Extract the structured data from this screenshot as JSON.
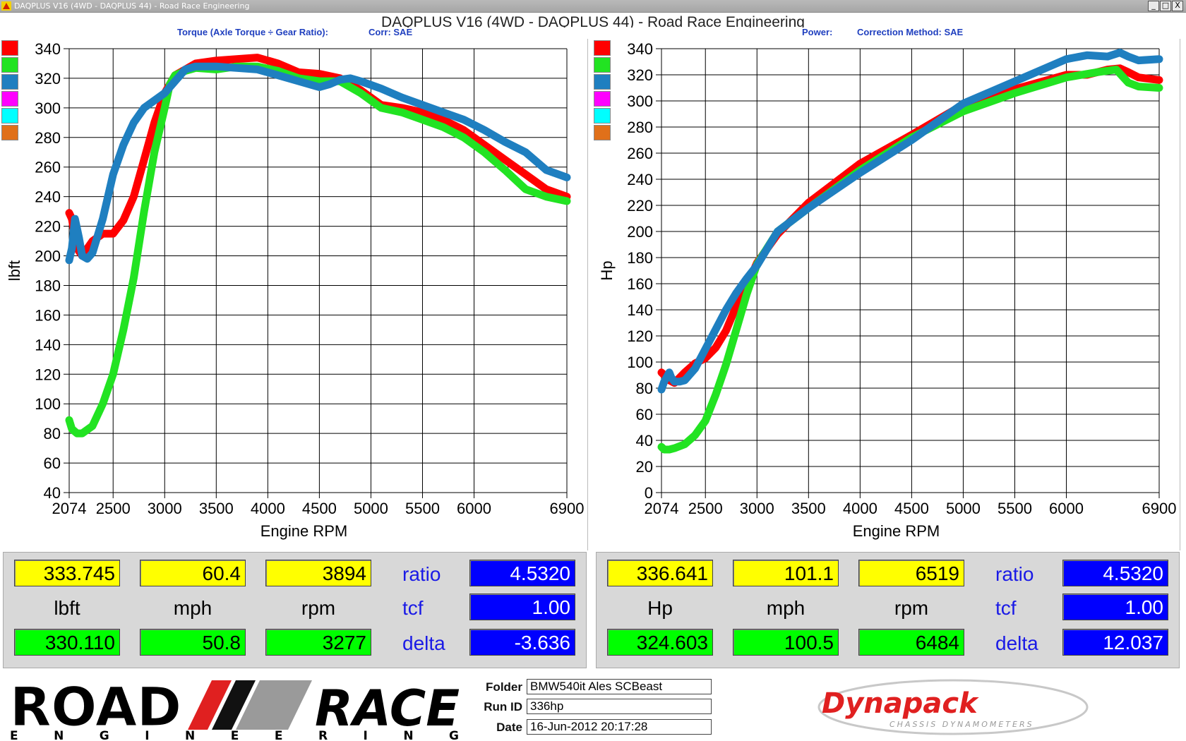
{
  "window": {
    "title": "DAQPLUS V16 (4WD - DAQPLUS 44) - Road Race Engineering",
    "buttons": [
      "_",
      "□",
      "X"
    ]
  },
  "header": {
    "title": "DAQPLUS V16 (4WD - DAQPLUS 44) - Road Race Engineering"
  },
  "colors": {
    "red": "#ff0000",
    "green": "#22e322",
    "blue": "#1f7fc0",
    "magenta": "#ff00ff",
    "cyan": "#00ffff",
    "orange": "#e0701a",
    "readout_yellow": "#ffff00",
    "readout_green": "#00ff00",
    "readout_blue": "#0000ff"
  },
  "chart_data": [
    {
      "type": "line",
      "subtitle_left": "Torque (Axle Torque ÷ Gear Ratio):",
      "subtitle_right": "Corr: SAE",
      "xlabel": "Engine RPM",
      "ylabel": "lbft",
      "xlim": [
        2074,
        6900
      ],
      "ylim": [
        40,
        340
      ],
      "xticks": [
        "2074",
        "2500",
        "3000",
        "3500",
        "4000",
        "4500",
        "5000",
        "5500",
        "6000",
        "6900"
      ],
      "xtick_values": [
        2074,
        2500,
        3000,
        3500,
        4000,
        4500,
        5000,
        5500,
        6000,
        6900
      ],
      "yticks": [
        340,
        320,
        300,
        280,
        260,
        240,
        220,
        200,
        180,
        160,
        140,
        120,
        100,
        80,
        60,
        40
      ],
      "grid": true,
      "legend": "left",
      "series": [
        {
          "color": "red",
          "x": [
            2074,
            2100,
            2150,
            2200,
            2300,
            2400,
            2500,
            2600,
            2700,
            2800,
            2900,
            3000,
            3100,
            3200,
            3300,
            3500,
            3700,
            3900,
            4100,
            4300,
            4500,
            4700,
            4900,
            5100,
            5300,
            5500,
            5700,
            5900,
            6100,
            6300,
            6500,
            6700,
            6900
          ],
          "y": [
            229,
            225,
            205,
            200,
            210,
            215,
            215,
            224,
            240,
            265,
            290,
            310,
            322,
            326,
            330,
            332,
            333,
            334,
            330,
            324,
            323,
            320,
            312,
            302,
            300,
            297,
            292,
            285,
            275,
            265,
            255,
            245,
            240
          ]
        },
        {
          "color": "green",
          "x": [
            2074,
            2100,
            2150,
            2200,
            2300,
            2400,
            2500,
            2600,
            2700,
            2800,
            2900,
            3000,
            3050,
            3100,
            3200,
            3300,
            3500,
            3700,
            3900,
            4100,
            4300,
            4500,
            4700,
            4900,
            5100,
            5300,
            5500,
            5700,
            5900,
            6100,
            6300,
            6500,
            6700,
            6900
          ],
          "y": [
            89,
            83,
            80,
            80,
            85,
            100,
            120,
            150,
            185,
            230,
            270,
            300,
            316,
            322,
            325,
            327,
            326,
            328,
            328,
            325,
            320,
            318,
            318,
            310,
            300,
            297,
            292,
            287,
            280,
            270,
            258,
            245,
            240,
            237
          ]
        },
        {
          "color": "blue",
          "x": [
            2074,
            2100,
            2130,
            2170,
            2200,
            2250,
            2300,
            2400,
            2500,
            2600,
            2700,
            2800,
            2900,
            3000,
            3100,
            3200,
            3300,
            3500,
            3700,
            3900,
            4100,
            4300,
            4500,
            4600,
            4700,
            4800,
            4900,
            5100,
            5300,
            5500,
            5700,
            5900,
            6100,
            6300,
            6500,
            6700,
            6900
          ],
          "y": [
            197,
            205,
            225,
            212,
            200,
            198,
            202,
            225,
            255,
            275,
            290,
            300,
            305,
            310,
            318,
            326,
            328,
            328,
            327,
            326,
            322,
            318,
            314,
            316,
            319,
            320,
            318,
            313,
            307,
            302,
            297,
            292,
            285,
            277,
            270,
            258,
            253
          ]
        }
      ]
    },
    {
      "type": "line",
      "subtitle_left": "Power:",
      "subtitle_right": "Correction Method: SAE",
      "xlabel": "Engine RPM",
      "ylabel": "Hp",
      "xlim": [
        2074,
        6900
      ],
      "ylim": [
        0,
        340
      ],
      "xticks": [
        "2074",
        "2500",
        "3000",
        "3500",
        "4000",
        "4500",
        "5000",
        "5500",
        "6000",
        "6900"
      ],
      "xtick_values": [
        2074,
        2500,
        3000,
        3500,
        4000,
        4500,
        5000,
        5500,
        6000,
        6900
      ],
      "yticks": [
        340,
        320,
        300,
        280,
        260,
        240,
        220,
        200,
        180,
        160,
        140,
        120,
        100,
        80,
        60,
        40,
        20,
        0
      ],
      "grid": true,
      "legend": "left",
      "series": [
        {
          "color": "red",
          "x": [
            2074,
            2100,
            2150,
            2200,
            2300,
            2400,
            2500,
            2600,
            2700,
            2800,
            2900,
            3000,
            3200,
            3500,
            4000,
            4500,
            5000,
            5500,
            6000,
            6200,
            6400,
            6519,
            6600,
            6700,
            6900
          ],
          "y": [
            92,
            90,
            86,
            84,
            92,
            99,
            103,
            111,
            124,
            143,
            158,
            176,
            198,
            222,
            252,
            274,
            297,
            309,
            320,
            320,
            324,
            325,
            322,
            318,
            316
          ]
        },
        {
          "color": "green",
          "x": [
            2074,
            2100,
            2150,
            2200,
            2300,
            2400,
            2500,
            2600,
            2700,
            2800,
            2900,
            3000,
            3200,
            3500,
            4000,
            4500,
            5000,
            5500,
            6000,
            6300,
            6484,
            6600,
            6700,
            6900
          ],
          "y": [
            35,
            33,
            33,
            34,
            37,
            44,
            55,
            75,
            98,
            125,
            152,
            175,
            200,
            218,
            247,
            272,
            292,
            306,
            318,
            322,
            324,
            314,
            311,
            310
          ]
        },
        {
          "color": "blue",
          "x": [
            2074,
            2100,
            2150,
            2170,
            2200,
            2250,
            2300,
            2400,
            2500,
            2600,
            2700,
            2800,
            2900,
            3000,
            3200,
            3500,
            4000,
            4500,
            5000,
            5500,
            6000,
            6200,
            6400,
            6519,
            6600,
            6700,
            6900
          ],
          "y": [
            79,
            85,
            92,
            88,
            85,
            85,
            86,
            95,
            110,
            125,
            140,
            153,
            164,
            174,
            200,
            218,
            245,
            270,
            298,
            315,
            332,
            335,
            334,
            337,
            334,
            331,
            332
          ]
        }
      ]
    }
  ],
  "readouts": {
    "left": {
      "yellow": [
        "333.745",
        "60.4",
        "3894"
      ],
      "units": [
        "lbft",
        "mph",
        "rpm"
      ],
      "green": [
        "330.110",
        "50.8",
        "3277"
      ],
      "ratio_label": "ratio",
      "ratio": "4.5320",
      "tcf_label": "tcf",
      "tcf": "1.00",
      "delta_label": "delta",
      "delta": "-3.636"
    },
    "right": {
      "yellow": [
        "336.641",
        "101.1",
        "6519"
      ],
      "units": [
        "Hp",
        "mph",
        "rpm"
      ],
      "green": [
        "324.603",
        "100.5",
        "6484"
      ],
      "ratio_label": "ratio",
      "ratio": "4.5320",
      "tcf_label": "tcf",
      "tcf": "1.00",
      "delta_label": "delta",
      "delta": "12.037"
    }
  },
  "footer": {
    "logo_top": "ROAD",
    "logo_right": "RACE",
    "logo_bottom": "E N G I N E E R I N G",
    "folder_label": "Folder",
    "folder_value": "BMW540it Ales SCBeast",
    "runid_label": "Run ID",
    "runid_value": "336hp",
    "date_label": "Date",
    "date_value": "16-Jun-2012  20:17:28",
    "brand_name": "Dynapack",
    "brand_tagline": "CHASSIS DYNAMOMETERS"
  }
}
